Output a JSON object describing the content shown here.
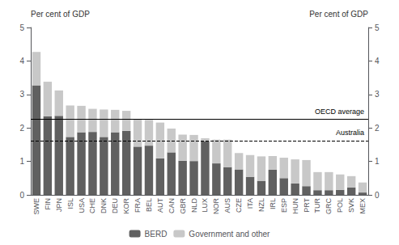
{
  "chart_data": {
    "type": "bar",
    "stacked": true,
    "categories": [
      "SWE",
      "FIN",
      "JPN",
      "ISL",
      "USA",
      "CHE",
      "DNK",
      "DEU",
      "KOR",
      "FRA",
      "BEL",
      "AUT",
      "CAN",
      "GBR",
      "NLD",
      "LUX",
      "NOR",
      "AUS",
      "CZE",
      "ITA",
      "NZL",
      "IRL",
      "ESP",
      "HUN",
      "PRT",
      "TUR",
      "GRC",
      "POL",
      "SVK",
      "MEX"
    ],
    "series": [
      {
        "name": "BERD",
        "color": "#606060",
        "values": [
          3.27,
          2.35,
          2.36,
          1.73,
          1.87,
          1.88,
          1.73,
          1.87,
          1.91,
          1.44,
          1.47,
          1.09,
          1.27,
          1.02,
          1.01,
          1.6,
          0.94,
          0.83,
          0.76,
          0.54,
          0.42,
          0.75,
          0.5,
          0.34,
          0.26,
          0.14,
          0.14,
          0.15,
          0.22,
          0.07
        ]
      },
      {
        "name": "Government and other",
        "color": "#c8c8c8",
        "values": [
          1.0,
          1.03,
          0.76,
          0.94,
          0.79,
          0.69,
          0.82,
          0.67,
          0.6,
          0.82,
          0.77,
          1.07,
          0.71,
          0.78,
          0.78,
          0.09,
          0.71,
          0.82,
          0.49,
          0.65,
          0.73,
          0.41,
          0.61,
          0.72,
          0.78,
          0.54,
          0.54,
          0.46,
          0.34,
          0.3
        ]
      }
    ],
    "reference_lines": [
      {
        "value": 2.26,
        "label": "OECD average",
        "line_style": "solid",
        "color": "#000000"
      },
      {
        "value": 1.62,
        "label": "Australia",
        "line_style": "dashed",
        "color": "#000000"
      }
    ],
    "ylabel": "Per cent of GDP",
    "y2label": "Per cent of GDP",
    "ylim": [
      0,
      5
    ],
    "yticks": [
      0,
      1,
      2,
      3,
      4,
      5
    ],
    "y2lim": [
      0,
      5
    ],
    "y2ticks": [
      0,
      1,
      2,
      3,
      4,
      5
    ],
    "grid": false,
    "legend": "bottom"
  }
}
